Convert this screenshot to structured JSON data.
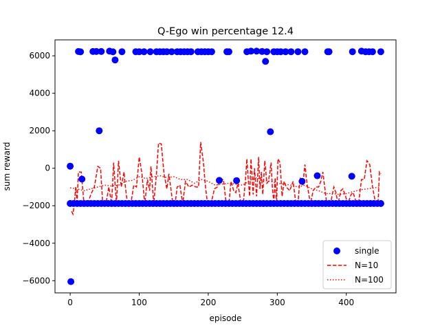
{
  "chart_data": {
    "type": "scatter",
    "title": "Q-Ego win percentage  12.4",
    "xlabel": "episode",
    "ylabel": "sum reward",
    "xlim": [
      -22,
      472
    ],
    "ylim": [
      -6650,
      6850
    ],
    "xticks": [
      0,
      100,
      200,
      300,
      400
    ],
    "yticks": [
      -6000,
      -4000,
      -2000,
      0,
      2000,
      4000,
      6000
    ],
    "grid": false,
    "legend_position": "lower-right",
    "colors": {
      "single": "#0000ff",
      "n10": "#ff0000",
      "n100": "#ff0000"
    },
    "series": [
      {
        "name": "single",
        "style": "markers",
        "points": [
          [
            0,
            110
          ],
          [
            1,
            -6050
          ],
          [
            12,
            6230
          ],
          [
            15,
            6210
          ],
          [
            17,
            -580
          ],
          [
            33,
            6230
          ],
          [
            38,
            6230
          ],
          [
            42,
            2000
          ],
          [
            45,
            6230
          ],
          [
            57,
            6250
          ],
          [
            62,
            6210
          ],
          [
            65,
            5780
          ],
          [
            75,
            6220
          ],
          [
            95,
            6220
          ],
          [
            100,
            6220
          ],
          [
            107,
            6220
          ],
          [
            116,
            6220
          ],
          [
            125,
            6220
          ],
          [
            130,
            6220
          ],
          [
            135,
            6220
          ],
          [
            140,
            6220
          ],
          [
            147,
            6220
          ],
          [
            155,
            6220
          ],
          [
            160,
            6220
          ],
          [
            165,
            6220
          ],
          [
            170,
            6220
          ],
          [
            175,
            6220
          ],
          [
            185,
            6220
          ],
          [
            190,
            6220
          ],
          [
            195,
            6220
          ],
          [
            200,
            6220
          ],
          [
            205,
            6220
          ],
          [
            216,
            -650
          ],
          [
            227,
            6220
          ],
          [
            230,
            6220
          ],
          [
            241,
            -660
          ],
          [
            256,
            6220
          ],
          [
            262,
            6250
          ],
          [
            270,
            6250
          ],
          [
            278,
            6230
          ],
          [
            283,
            5700
          ],
          [
            285,
            6220
          ],
          [
            290,
            1950
          ],
          [
            295,
            6220
          ],
          [
            300,
            6220
          ],
          [
            305,
            6220
          ],
          [
            312,
            6220
          ],
          [
            320,
            6220
          ],
          [
            330,
            6220
          ],
          [
            336,
            -700
          ],
          [
            340,
            6220
          ],
          [
            358,
            -400
          ],
          [
            373,
            6220
          ],
          [
            375,
            6220
          ],
          [
            408,
            -430
          ],
          [
            409,
            6220
          ],
          [
            422,
            6250
          ],
          [
            428,
            6220
          ],
          [
            433,
            6220
          ],
          [
            438,
            6220
          ],
          [
            450,
            6220
          ]
        ],
        "dense_baseline": {
          "x_range": [
            0,
            450
          ],
          "step": 5,
          "y": -1880
        }
      },
      {
        "name": "N=10",
        "style": "dashed",
        "points": [
          [
            2,
            -2300
          ],
          [
            4,
            -2450
          ],
          [
            6,
            -1900
          ],
          [
            8,
            -1000
          ],
          [
            10,
            -1800
          ],
          [
            12,
            -200
          ],
          [
            16,
            -200
          ],
          [
            20,
            -1900
          ],
          [
            25,
            -1900
          ],
          [
            30,
            -1400
          ],
          [
            35,
            -1000
          ],
          [
            40,
            100
          ],
          [
            44,
            0
          ],
          [
            47,
            -1850
          ],
          [
            52,
            -1850
          ],
          [
            56,
            -1000
          ],
          [
            60,
            -1900
          ],
          [
            63,
            300
          ],
          [
            67,
            -1900
          ],
          [
            70,
            400
          ],
          [
            72,
            -300
          ],
          [
            74,
            -1000
          ],
          [
            78,
            -200
          ],
          [
            80,
            -1000
          ],
          [
            83,
            -1900
          ],
          [
            88,
            -1900
          ],
          [
            92,
            -900
          ],
          [
            96,
            -1000
          ],
          [
            100,
            600
          ],
          [
            104,
            -300
          ],
          [
            108,
            -1900
          ],
          [
            112,
            -600
          ],
          [
            115,
            -1200
          ],
          [
            117,
            100
          ],
          [
            121,
            -1900
          ],
          [
            125,
            -300
          ],
          [
            128,
            1350
          ],
          [
            132,
            1300
          ],
          [
            136,
            -300
          ],
          [
            140,
            -1100
          ],
          [
            143,
            -300
          ],
          [
            148,
            -1700
          ],
          [
            152,
            -1900
          ],
          [
            155,
            -1000
          ],
          [
            159,
            -900
          ],
          [
            163,
            -1900
          ],
          [
            167,
            -700
          ],
          [
            172,
            -1000
          ],
          [
            177,
            -900
          ],
          [
            182,
            -1000
          ],
          [
            186,
            -1000
          ],
          [
            189,
            1400
          ],
          [
            193,
            300
          ],
          [
            196,
            -1000
          ],
          [
            199,
            -1900
          ],
          [
            204,
            -1900
          ],
          [
            209,
            -1100
          ],
          [
            213,
            -1000
          ],
          [
            217,
            -600
          ],
          [
            222,
            -600
          ],
          [
            226,
            -1900
          ],
          [
            230,
            -1900
          ],
          [
            233,
            -700
          ],
          [
            237,
            -1200
          ],
          [
            240,
            -1300
          ],
          [
            243,
            -800
          ],
          [
            247,
            -1800
          ],
          [
            251,
            -1800
          ],
          [
            254,
            -600
          ],
          [
            256,
            500
          ],
          [
            258,
            -600
          ],
          [
            260,
            -1500
          ],
          [
            262,
            500
          ],
          [
            265,
            -1400
          ],
          [
            267,
            0
          ],
          [
            270,
            -1500
          ],
          [
            273,
            600
          ],
          [
            275,
            -1100
          ],
          [
            277,
            -200
          ],
          [
            279,
            -1400
          ],
          [
            282,
            400
          ],
          [
            285,
            -800
          ],
          [
            287,
            -700
          ],
          [
            289,
            -300
          ],
          [
            291,
            300
          ],
          [
            293,
            -1100
          ],
          [
            295,
            -1800
          ],
          [
            297,
            -500
          ],
          [
            299,
            -1900
          ],
          [
            301,
            500
          ],
          [
            304,
            300
          ],
          [
            307,
            -1500
          ],
          [
            310,
            -700
          ],
          [
            313,
            -1000
          ],
          [
            318,
            -1200
          ],
          [
            323,
            -700
          ],
          [
            327,
            -1900
          ],
          [
            330,
            -1900
          ],
          [
            333,
            -500
          ],
          [
            337,
            -900
          ],
          [
            340,
            200
          ],
          [
            343,
            -800
          ],
          [
            348,
            -1900
          ],
          [
            352,
            -1200
          ],
          [
            356,
            -1000
          ],
          [
            360,
            -1000
          ],
          [
            363,
            -700
          ],
          [
            366,
            -200
          ],
          [
            369,
            -1100
          ],
          [
            372,
            -2000
          ],
          [
            377,
            -1900
          ],
          [
            382,
            -1000
          ],
          [
            385,
            -1300
          ],
          [
            388,
            -1900
          ],
          [
            392,
            -1200
          ],
          [
            395,
            -1100
          ],
          [
            399,
            -1500
          ],
          [
            402,
            -1900
          ],
          [
            407,
            -1400
          ],
          [
            410,
            -1300
          ],
          [
            414,
            -1800
          ],
          [
            418,
            -1800
          ],
          [
            422,
            -600
          ],
          [
            426,
            -600
          ],
          [
            430,
            400
          ],
          [
            434,
            200
          ],
          [
            438,
            -1000
          ],
          [
            442,
            -1800
          ],
          [
            446,
            -1900
          ],
          [
            448,
            -200
          ],
          [
            450,
            -300
          ]
        ]
      },
      {
        "name": "N=100",
        "style": "dotted",
        "points": [
          [
            0,
            -1050
          ],
          [
            10,
            -1100
          ],
          [
            20,
            -1200
          ],
          [
            30,
            -1100
          ],
          [
            40,
            -1000
          ],
          [
            50,
            -900
          ],
          [
            60,
            -950
          ],
          [
            70,
            -900
          ],
          [
            80,
            -700
          ],
          [
            90,
            -650
          ],
          [
            100,
            -450
          ],
          [
            110,
            -550
          ],
          [
            120,
            -450
          ],
          [
            130,
            -400
          ],
          [
            140,
            -500
          ],
          [
            150,
            -450
          ],
          [
            160,
            -600
          ],
          [
            170,
            -600
          ],
          [
            180,
            -800
          ],
          [
            190,
            -600
          ],
          [
            200,
            -700
          ],
          [
            210,
            -900
          ],
          [
            220,
            -850
          ],
          [
            230,
            -800
          ],
          [
            240,
            -850
          ],
          [
            250,
            -900
          ],
          [
            260,
            -650
          ],
          [
            270,
            -500
          ],
          [
            280,
            -650
          ],
          [
            290,
            -700
          ],
          [
            300,
            -800
          ],
          [
            310,
            -850
          ],
          [
            320,
            -900
          ],
          [
            330,
            -1000
          ],
          [
            340,
            -900
          ],
          [
            350,
            -1100
          ],
          [
            360,
            -1200
          ],
          [
            370,
            -1350
          ],
          [
            380,
            -1350
          ],
          [
            390,
            -1400
          ],
          [
            400,
            -1350
          ],
          [
            410,
            -1250
          ],
          [
            420,
            -1150
          ],
          [
            430,
            -1100
          ],
          [
            440,
            -1050
          ],
          [
            450,
            -1000
          ]
        ]
      }
    ]
  }
}
